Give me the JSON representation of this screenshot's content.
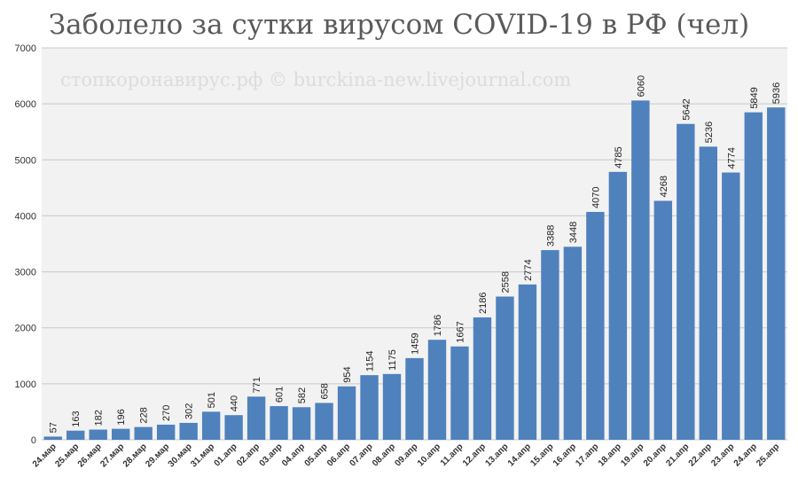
{
  "chart_data": {
    "type": "bar",
    "title": "Заболело за сутки вирусом COVID-19 в РФ (чел)",
    "watermark": "стопкоронавирус.рф © burckina-new.livejournal.com",
    "categories": [
      "24.мар",
      "25.мар",
      "26.мар",
      "27.мар",
      "28.мар",
      "29.мар",
      "30.мар",
      "31.мар",
      "01.апр",
      "02.апр",
      "03.апр",
      "04.апр",
      "05.апр",
      "06.апр",
      "07.апр",
      "08.апр",
      "09.апр",
      "10.апр",
      "11.апр",
      "12.апр",
      "13.апр",
      "14.апр",
      "15.апр",
      "16.апр",
      "17.апр",
      "18.апр",
      "19.апр",
      "20.апр",
      "21.апр",
      "22.апр",
      "23.апр",
      "24.апр",
      "25.апр"
    ],
    "values": [
      57,
      163,
      182,
      196,
      228,
      270,
      302,
      501,
      440,
      771,
      601,
      582,
      658,
      954,
      1154,
      1175,
      1459,
      1786,
      1667,
      2186,
      2558,
      2774,
      3388,
      3448,
      4070,
      4785,
      6060,
      4268,
      5642,
      5236,
      4774,
      5849,
      5936
    ],
    "ylim": [
      0,
      7000
    ],
    "yticks": [
      0,
      1000,
      2000,
      3000,
      4000,
      5000,
      6000,
      7000
    ],
    "grid": true,
    "bar_color": "#4f81bd",
    "plot_background": "#f2f2f2"
  }
}
